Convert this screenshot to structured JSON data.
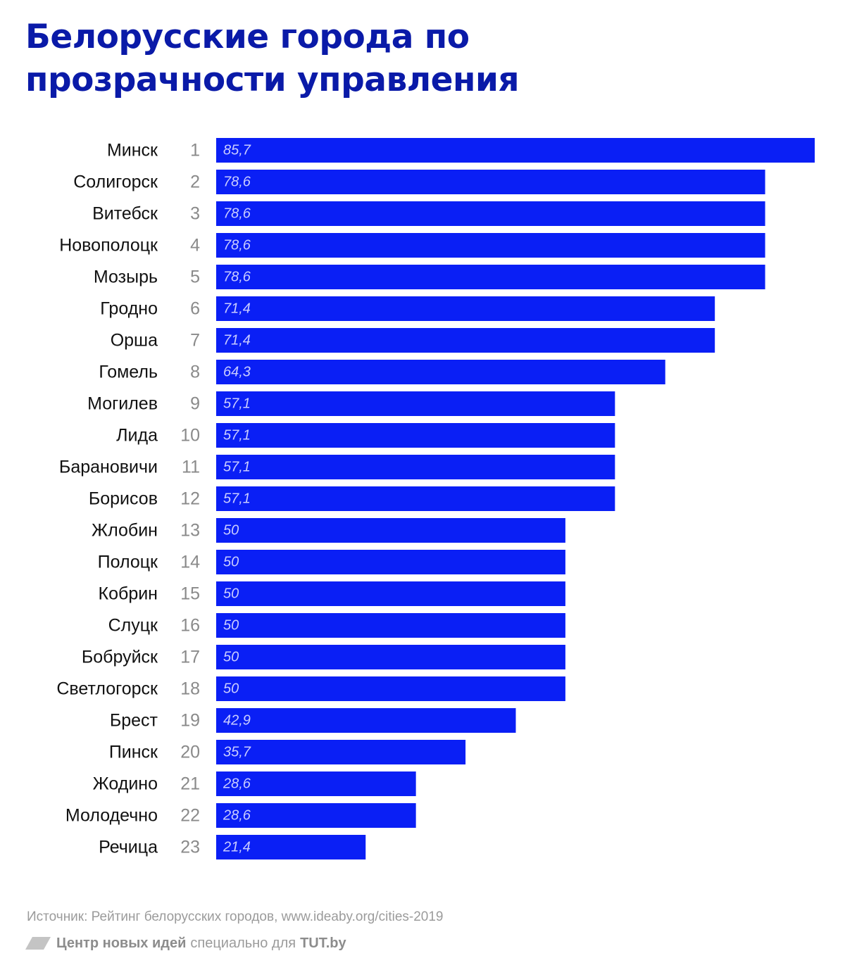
{
  "title": "Белорусские города по прозрачности управления",
  "source": "Источник: Рейтинг белорусских городов, www.ideaby.org/cities-2019",
  "footer": {
    "org": "Центр новых идей",
    "middle": "специально для",
    "site": "TUT.by"
  },
  "colors": {
    "bar": "#0a1ff5",
    "title": "#0a1aa8"
  },
  "chart_data": {
    "type": "bar",
    "orientation": "horizontal",
    "title": "Белорусские города по прозрачности управления",
    "xlabel": "",
    "ylabel": "",
    "xlim": [
      0,
      85.7
    ],
    "grid": false,
    "legend": "none",
    "categories": [
      "Минск",
      "Солигорск",
      "Витебск",
      "Новополоцк",
      "Мозырь",
      "Гродно",
      "Орша",
      "Гомель",
      "Могилев",
      "Лида",
      "Барановичи",
      "Борисов",
      "Жлобин",
      "Полоцк",
      "Кобрин",
      "Слуцк",
      "Бобруйск",
      "Светлогорск",
      "Брест",
      "Пинск",
      "Жодино",
      "Молодечно",
      "Речица"
    ],
    "ranks": [
      "1",
      "2",
      "3",
      "4",
      "5",
      "6",
      "7",
      "8",
      "9",
      "10",
      "11",
      "12",
      "13",
      "14",
      "15",
      "16",
      "17",
      "18",
      "19",
      "20",
      "21",
      "22",
      "23"
    ],
    "values": [
      85.7,
      78.6,
      78.6,
      78.6,
      78.6,
      71.4,
      71.4,
      64.3,
      57.1,
      57.1,
      57.1,
      57.1,
      50,
      50,
      50,
      50,
      50,
      50,
      42.9,
      35.7,
      28.6,
      28.6,
      21.4
    ],
    "value_labels": [
      "85,7",
      "78,6",
      "78,6",
      "78,6",
      "78,6",
      "71,4",
      "71,4",
      "64,3",
      "57,1",
      "57,1",
      "57,1",
      "57,1",
      "50",
      "50",
      "50",
      "50",
      "50",
      "50",
      "42,9",
      "35,7",
      "28,6",
      "28,6",
      "21,4"
    ]
  }
}
